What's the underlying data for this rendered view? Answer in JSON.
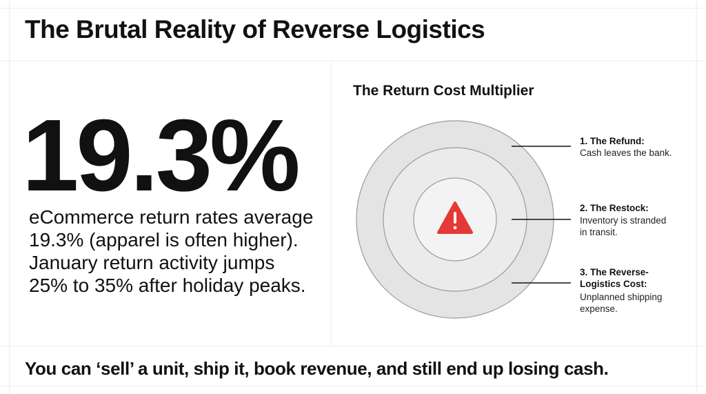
{
  "title": "The Brutal Reality of Reverse Logistics",
  "stat": {
    "value": "19.3%",
    "description": "eCommerce return rates average 19.3% (apparel is often higher). January return activity jumps 25% to 35% after holiday peaks."
  },
  "diagram": {
    "title": "The Return Cost Multiplier",
    "center_icon": "warning-triangle-icon",
    "layers": [
      {
        "title_lines": [
          "1. The Refund:"
        ],
        "desc_lines": [
          "Cash leaves the bank."
        ]
      },
      {
        "title_lines": [
          "2. The Restock:"
        ],
        "desc_lines": [
          "Inventory is stranded",
          "in transit."
        ]
      },
      {
        "title_lines": [
          "3. The Reverse-",
          "Logistics Cost:"
        ],
        "desc_lines": [
          "Unplanned shipping",
          "expense."
        ]
      }
    ]
  },
  "footer": "You can ‘sell’ a unit, ship it, book revenue, and still end up losing cash.",
  "colors": {
    "warning": "#e53935",
    "ring_outer": "#e4e4e4",
    "ring_middle": "#ebebeb",
    "ring_inner": "#f3f3f3",
    "text": "#111111"
  }
}
